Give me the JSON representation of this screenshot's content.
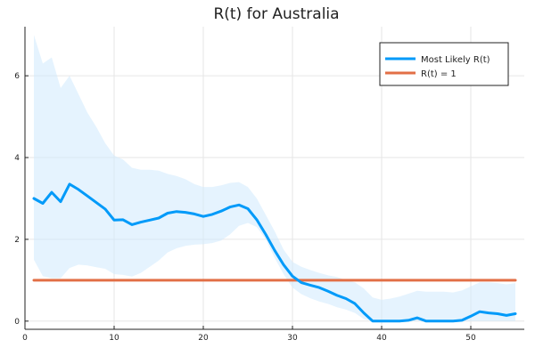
{
  "chart_data": {
    "type": "line",
    "title": "R(t) for Australia",
    "xlabel": "",
    "ylabel": "",
    "xlim": [
      0,
      56
    ],
    "ylim": [
      -0.2,
      7.2
    ],
    "xticks": [
      0,
      10,
      20,
      30,
      40,
      50
    ],
    "yticks": [
      0,
      2,
      4,
      6
    ],
    "grid": true,
    "legend_position": "top-right",
    "series": [
      {
        "name": "Most Likely R(t)",
        "color": "#009af9",
        "x": [
          1,
          2,
          3,
          4,
          5,
          6,
          7,
          8,
          9,
          10,
          11,
          12,
          13,
          14,
          15,
          16,
          17,
          18,
          19,
          20,
          21,
          22,
          23,
          24,
          25,
          26,
          27,
          28,
          29,
          30,
          31,
          32,
          33,
          34,
          35,
          36,
          37,
          38,
          39,
          40,
          41,
          42,
          43,
          44,
          45,
          46,
          47,
          48,
          49,
          50,
          51,
          52,
          53,
          54,
          55
        ],
        "values": [
          3.0,
          2.88,
          3.15,
          2.92,
          3.35,
          3.22,
          3.06,
          2.9,
          2.74,
          2.47,
          2.48,
          2.36,
          2.42,
          2.47,
          2.52,
          2.64,
          2.68,
          2.66,
          2.62,
          2.56,
          2.61,
          2.69,
          2.79,
          2.84,
          2.75,
          2.48,
          2.12,
          1.73,
          1.38,
          1.1,
          0.94,
          0.88,
          0.82,
          0.73,
          0.63,
          0.55,
          0.43,
          0.2,
          0.0,
          0.0,
          0.0,
          0.0,
          0.02,
          0.08,
          0.0,
          0.0,
          0.0,
          0.0,
          0.02,
          0.12,
          0.23,
          0.2,
          0.18,
          0.14,
          0.18
        ]
      },
      {
        "name": "R(t) = 1",
        "color": "#e26f46",
        "x": [
          1,
          55
        ],
        "values": [
          1,
          1
        ]
      }
    ],
    "band": {
      "color": "#cfe9fd",
      "x": [
        1,
        2,
        3,
        4,
        5,
        6,
        7,
        8,
        9,
        10,
        11,
        12,
        13,
        14,
        15,
        16,
        17,
        18,
        19,
        20,
        21,
        22,
        23,
        24,
        25,
        26,
        27,
        28,
        29,
        30,
        31,
        32,
        33,
        34,
        35,
        36,
        37,
        38,
        39,
        40,
        41,
        42,
        43,
        44,
        45,
        46,
        47,
        48,
        49,
        50,
        51,
        52,
        53,
        54,
        55
      ],
      "upper": [
        7.0,
        6.3,
        6.45,
        5.7,
        6.0,
        5.55,
        5.1,
        4.75,
        4.35,
        4.05,
        3.95,
        3.75,
        3.7,
        3.7,
        3.68,
        3.6,
        3.55,
        3.47,
        3.35,
        3.28,
        3.28,
        3.32,
        3.38,
        3.4,
        3.28,
        3.0,
        2.6,
        2.2,
        1.75,
        1.45,
        1.33,
        1.25,
        1.18,
        1.12,
        1.08,
        1.0,
        0.95,
        0.8,
        0.58,
        0.52,
        0.55,
        0.6,
        0.67,
        0.74,
        0.72,
        0.72,
        0.72,
        0.7,
        0.75,
        0.85,
        0.95,
        0.95,
        0.93,
        0.9,
        0.93
      ],
      "lower": [
        1.5,
        1.1,
        1.05,
        1.05,
        1.3,
        1.38,
        1.36,
        1.32,
        1.28,
        1.15,
        1.13,
        1.09,
        1.18,
        1.33,
        1.48,
        1.68,
        1.78,
        1.84,
        1.87,
        1.88,
        1.91,
        1.97,
        2.12,
        2.33,
        2.4,
        2.3,
        2.0,
        1.55,
        1.15,
        0.82,
        0.66,
        0.56,
        0.48,
        0.42,
        0.34,
        0.28,
        0.2,
        0.05,
        0.0,
        0.0,
        0.0,
        0.0,
        0.0,
        0.0,
        0.0,
        0.0,
        0.0,
        0.0,
        0.0,
        0.0,
        0.0,
        0.0,
        0.0,
        0.0,
        0.0
      ]
    }
  }
}
